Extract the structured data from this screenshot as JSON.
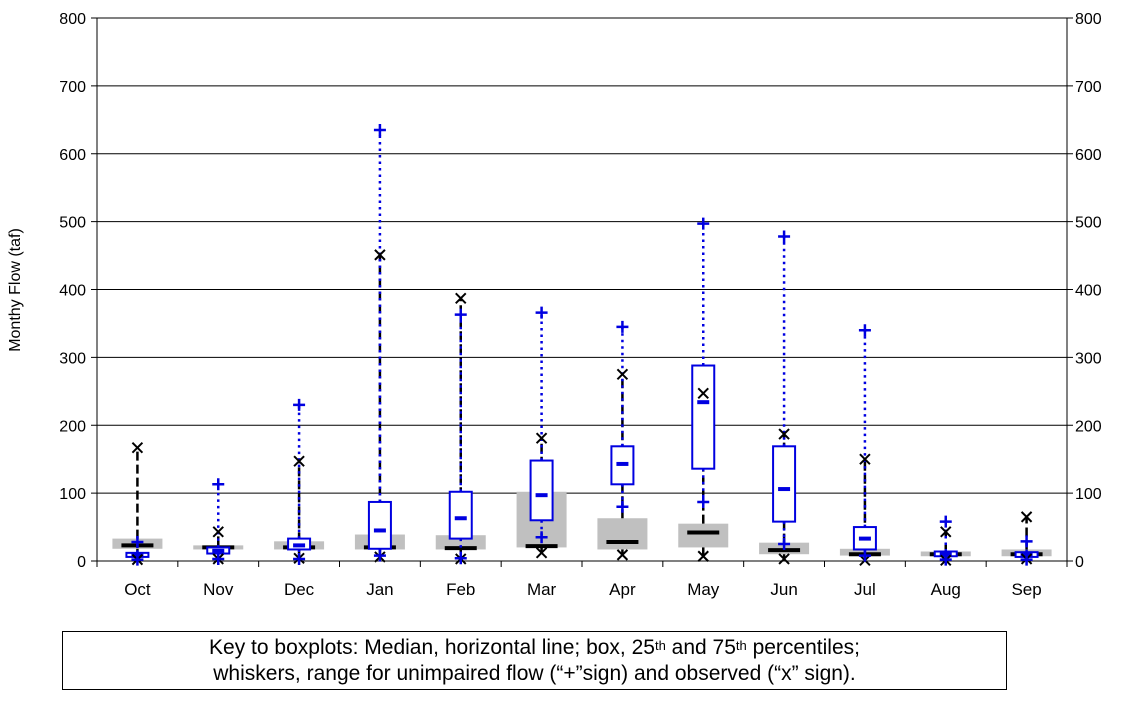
{
  "chart_data": {
    "type": "boxplot",
    "ylabel": "Monthy Flow (taf)",
    "ylim": [
      0,
      800
    ],
    "yticks": [
      "0",
      "100",
      "200",
      "300",
      "400",
      "500",
      "600",
      "700",
      "800"
    ],
    "grid": true,
    "categories": [
      "Oct",
      "Nov",
      "Dec",
      "Jan",
      "Feb",
      "Mar",
      "Apr",
      "May",
      "Jun",
      "Jul",
      "Aug",
      "Sep"
    ],
    "series": [
      {
        "marker": "+",
        "color": "#0000e0",
        "boxes": [
          {
            "q1": 6,
            "median": 9,
            "q3": 12,
            "min": 2,
            "max": 28
          },
          {
            "q1": 11,
            "median": 15,
            "q3": 20,
            "min": 3,
            "max": 113
          },
          {
            "q1": 17,
            "median": 23,
            "q3": 33,
            "min": 3,
            "max": 230
          },
          {
            "q1": 18,
            "median": 45,
            "q3": 87,
            "min": 8,
            "max": 635
          },
          {
            "q1": 33,
            "median": 63,
            "q3": 102,
            "min": 4,
            "max": 363
          },
          {
            "q1": 60,
            "median": 97,
            "q3": 148,
            "min": 35,
            "max": 366
          },
          {
            "q1": 113,
            "median": 143,
            "q3": 169,
            "min": 80,
            "max": 345
          },
          {
            "q1": 136,
            "median": 234,
            "q3": 288,
            "min": 87,
            "max": 497
          },
          {
            "q1": 58,
            "median": 106,
            "q3": 169,
            "min": 25,
            "max": 478
          },
          {
            "q1": 17,
            "median": 33,
            "q3": 50,
            "min": 8,
            "max": 340
          },
          {
            "q1": 7,
            "median": 10,
            "q3": 14,
            "min": 2,
            "max": 58
          },
          {
            "q1": 6,
            "median": 10,
            "q3": 13,
            "min": 2,
            "max": 29
          }
        ]
      },
      {
        "marker": "x",
        "color": "#000000",
        "fill": "#c0c0c0",
        "boxes": [
          {
            "q1": 18,
            "median": 23,
            "q3": 33,
            "min": 2,
            "max": 167
          },
          {
            "q1": 17,
            "median": 20,
            "q3": 23,
            "min": 3,
            "max": 43
          },
          {
            "q1": 17,
            "median": 20,
            "q3": 29,
            "min": 4,
            "max": 147
          },
          {
            "q1": 17,
            "median": 20,
            "q3": 39,
            "min": 6,
            "max": 451
          },
          {
            "q1": 17,
            "median": 19,
            "q3": 38,
            "min": 3,
            "max": 387
          },
          {
            "q1": 20,
            "median": 22,
            "q3": 102,
            "min": 12,
            "max": 181
          },
          {
            "q1": 17,
            "median": 28,
            "q3": 63,
            "min": 9,
            "max": 275
          },
          {
            "q1": 20,
            "median": 42,
            "q3": 55,
            "min": 7,
            "max": 247
          },
          {
            "q1": 10,
            "median": 16,
            "q3": 27,
            "min": 3,
            "max": 187
          },
          {
            "q1": 8,
            "median": 10,
            "q3": 18,
            "min": 1,
            "max": 150
          },
          {
            "q1": 7,
            "median": 10,
            "q3": 14,
            "min": 1,
            "max": 43
          },
          {
            "q1": 7,
            "median": 10,
            "q3": 17,
            "min": 3,
            "max": 65
          }
        ]
      }
    ]
  },
  "key": {
    "line1_a": "Key to boxplots: Median, horizontal line; box, 25",
    "line1_sup1": "th",
    "line1_b": " and 75",
    "line1_sup2": "th",
    "line1_c": " percentiles;",
    "line2": "whiskers, range for unimpaired flow (“+”sign) and observed (“x” sign)."
  }
}
